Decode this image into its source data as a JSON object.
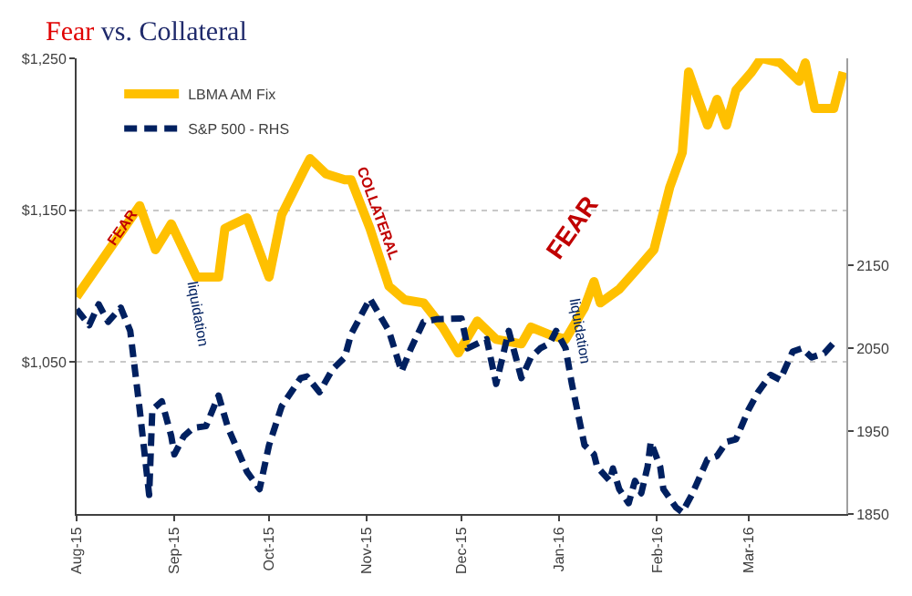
{
  "chart_data": {
    "type": "line",
    "title": "Fear vs. Collateral",
    "xlim": [
      "2015-08-01",
      "2016-04-01"
    ],
    "xticks": [
      {
        "value": "2015-08-01",
        "label": "Aug-15"
      },
      {
        "value": "2015-09-01",
        "label": "Sep-15"
      },
      {
        "value": "2015-10-01",
        "label": "Oct-15"
      },
      {
        "value": "2015-11-01",
        "label": "Nov-15"
      },
      {
        "value": "2015-12-01",
        "label": "Dec-15"
      },
      {
        "value": "2016-01-01",
        "label": "Jan-16"
      },
      {
        "value": "2016-02-01",
        "label": "Feb-16"
      },
      {
        "value": "2016-03-01",
        "label": "Mar-16"
      }
    ],
    "ylim": [
      950,
      1250
    ],
    "yticks": [
      {
        "value": 1050,
        "label": "$1,050"
      },
      {
        "value": 1150,
        "label": "$1,150"
      },
      {
        "value": 1250,
        "label": "$1,250"
      }
    ],
    "y2lim": [
      1850,
      2400
    ],
    "y2ticks": [
      1850,
      1950,
      2050,
      2150
    ],
    "grid": "y",
    "legend": "top left",
    "annotations": [
      "FEAR",
      "COLLATERAL",
      "FEAR",
      "liquidation",
      "liquidation"
    ],
    "series": [
      {
        "name": "LBMA AM Fix",
        "color": "#ffc000",
        "line_style": "solid",
        "x": [
          "2015-08-01",
          "2015-08-09",
          "2015-08-21",
          "2015-08-26",
          "2015-08-31",
          "2015-09-08",
          "2015-09-15",
          "2015-09-17",
          "2015-09-24",
          "2015-10-01",
          "2015-10-05",
          "2015-10-12",
          "2015-10-14",
          "2015-10-19",
          "2015-10-25",
          "2015-10-27",
          "2015-11-02",
          "2015-11-08",
          "2015-11-13",
          "2015-11-19",
          "2015-11-25",
          "2015-11-30",
          "2015-12-06",
          "2015-12-12",
          "2015-12-20",
          "2015-12-23",
          "2015-12-29",
          "2016-01-03",
          "2016-01-09",
          "2016-01-12",
          "2016-01-14",
          "2016-01-20",
          "2016-01-26",
          "2016-01-31",
          "2016-02-05",
          "2016-02-09",
          "2016-02-11",
          "2016-02-13",
          "2016-02-17",
          "2016-02-20",
          "2016-02-23",
          "2016-02-26",
          "2016-03-02",
          "2016-03-05",
          "2016-03-11",
          "2016-03-17",
          "2016-03-19",
          "2016-03-22",
          "2016-03-28",
          "2016-03-31"
        ],
        "values": [
          1093,
          1117,
          1153,
          1124,
          1141,
          1106,
          1106,
          1138,
          1145,
          1106,
          1147,
          1176,
          1184,
          1174,
          1170,
          1170,
          1138,
          1100,
          1091,
          1089,
          1073,
          1056,
          1077,
          1065,
          1062,
          1073,
          1068,
          1065,
          1086,
          1103,
          1089,
          1098,
          1112,
          1124,
          1165,
          1188,
          1241,
          1229,
          1206,
          1223,
          1206,
          1229,
          1241,
          1250,
          1247,
          1235,
          1247,
          1217,
          1217,
          1241
        ]
      },
      {
        "name": "S&P 500 - RHS",
        "color": "#002060",
        "line_style": "dashed",
        "axis": "y2",
        "x": [
          "2015-08-01",
          "2015-08-05",
          "2015-08-08",
          "2015-08-11",
          "2015-08-15",
          "2015-08-18",
          "2015-08-21",
          "2015-08-24",
          "2015-08-25",
          "2015-08-28",
          "2015-08-31",
          "2015-09-01",
          "2015-09-04",
          "2015-09-07",
          "2015-09-11",
          "2015-09-15",
          "2015-09-18",
          "2015-09-24",
          "2015-09-28",
          "2015-10-01",
          "2015-10-05",
          "2015-10-11",
          "2015-10-13",
          "2015-10-17",
          "2015-10-21",
          "2015-10-25",
          "2015-10-27",
          "2015-11-02",
          "2015-11-08",
          "2015-11-12",
          "2015-11-15",
          "2015-11-19",
          "2015-11-23",
          "2015-12-01",
          "2015-12-03",
          "2015-12-09",
          "2015-12-12",
          "2015-12-16",
          "2015-12-20",
          "2015-12-23",
          "2015-12-26",
          "2015-12-29",
          "2015-12-31",
          "2016-01-03",
          "2016-01-05",
          "2016-01-09",
          "2016-01-12",
          "2016-01-13",
          "2016-01-17",
          "2016-01-18",
          "2016-01-20",
          "2016-01-23",
          "2016-01-25",
          "2016-01-27",
          "2016-01-29",
          "2016-01-30",
          "2016-02-02",
          "2016-02-03",
          "2016-02-07",
          "2016-02-09",
          "2016-02-12",
          "2016-02-17",
          "2016-02-20",
          "2016-02-23",
          "2016-02-26",
          "2016-03-01",
          "2016-03-04",
          "2016-03-08",
          "2016-03-11",
          "2016-03-15",
          "2016-03-18",
          "2016-03-21",
          "2016-03-25",
          "2016-03-29"
        ],
        "values": [
          2097,
          2078,
          2103,
          2082,
          2099,
          2071,
          1976,
          1873,
          1976,
          1986,
          1944,
          1922,
          1944,
          1954,
          1956,
          1993,
          1954,
          1901,
          1880,
          1933,
          1980,
          2014,
          2016,
          1997,
          2024,
          2039,
          2067,
          2110,
          2071,
          2022,
          2050,
          2082,
          2085,
          2086,
          2050,
          2061,
          2007,
          2071,
          2014,
          2039,
          2050,
          2056,
          2071,
          2050,
          2007,
          1933,
          1922,
          1907,
          1890,
          1905,
          1880,
          1863,
          1890,
          1875,
          1907,
          1937,
          1907,
          1880,
          1858,
          1852,
          1873,
          1916,
          1920,
          1937,
          1940,
          1976,
          1997,
          2018,
          2012,
          2046,
          2050,
          2039,
          2044,
          2061
        ]
      }
    ]
  }
}
